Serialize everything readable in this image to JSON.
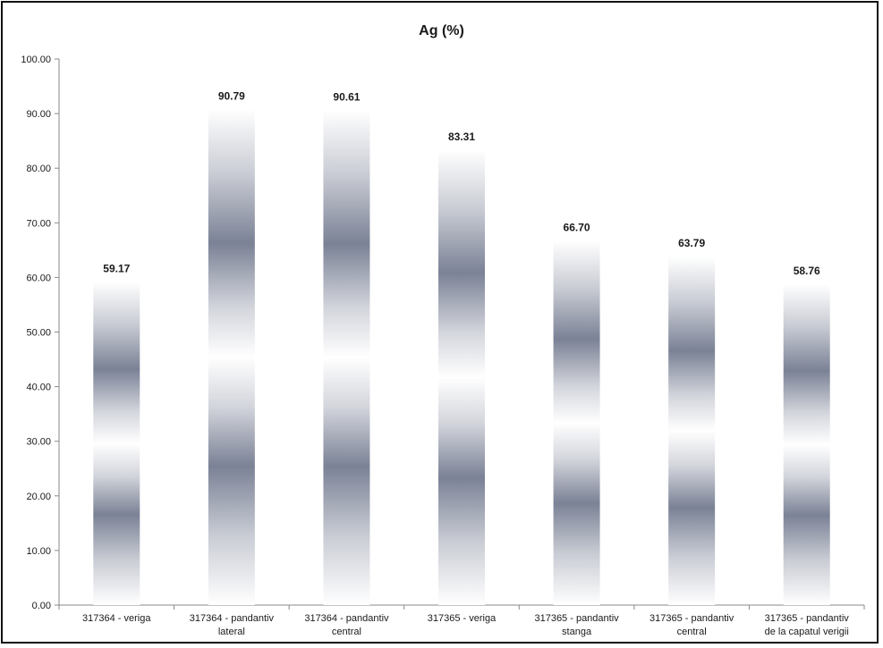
{
  "chart_data": {
    "type": "bar",
    "title": "Ag (%)",
    "xlabel": "",
    "ylabel": "",
    "ylim": [
      0,
      100
    ],
    "yticks": [
      "0.00",
      "10.00",
      "20.00",
      "30.00",
      "40.00",
      "50.00",
      "60.00",
      "70.00",
      "80.00",
      "90.00",
      "100.00"
    ],
    "categories": [
      [
        "317364 - veriga"
      ],
      [
        "317364 - pandantiv",
        "lateral"
      ],
      [
        "317364 - pandantiv",
        "central"
      ],
      [
        "317365 - veriga"
      ],
      [
        "317365 - pandantiv",
        "stanga"
      ],
      [
        "317365 - pandantiv",
        "central"
      ],
      [
        "317365 - pandantiv",
        "de la capatul verigii"
      ]
    ],
    "values": [
      59.17,
      90.79,
      90.61,
      83.31,
      66.7,
      63.79,
      58.76
    ],
    "data_labels": [
      "59.17",
      "90.79",
      "90.61",
      "83.31",
      "66.70",
      "63.79",
      "58.76"
    ],
    "grid": false,
    "legend": "none",
    "bar_fill": "banded grey gradient",
    "colors": {
      "band_dark": "#7b8296",
      "band_light": "#ffffff",
      "axis": "#8a8a8a",
      "text": "#1a1a1a"
    }
  }
}
